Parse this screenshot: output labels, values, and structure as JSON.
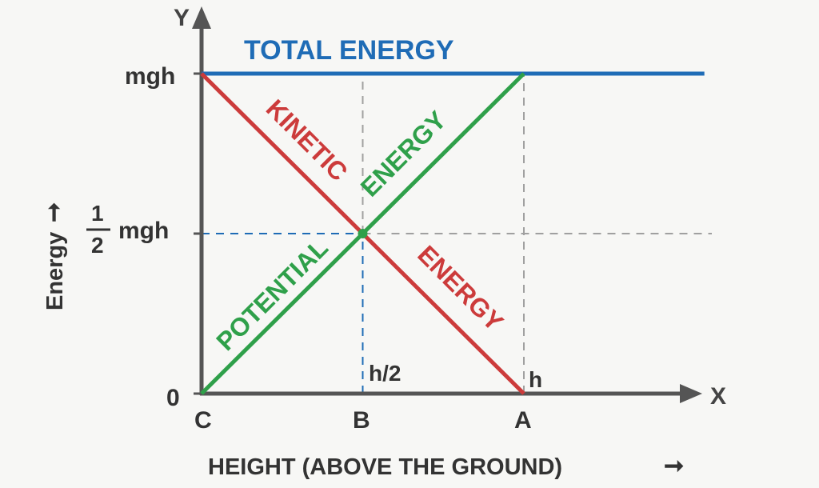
{
  "chart_data": {
    "type": "line",
    "title": "",
    "xlabel": "HEIGHT (ABOVE THE GROUND)",
    "ylabel": "Energy",
    "x_axis_letter": "X",
    "y_axis_letter": "Y",
    "xlim": [
      0,
      1
    ],
    "ylim": [
      0,
      1
    ],
    "x_ticks": [
      {
        "value": 0,
        "point": "C",
        "label": ""
      },
      {
        "value": 0.5,
        "point": "B",
        "label": "h/2"
      },
      {
        "value": 1,
        "point": "A",
        "label": "h"
      }
    ],
    "y_ticks": [
      {
        "value": 0,
        "label": "0"
      },
      {
        "value": 0.5,
        "label_num": "1",
        "label_den": "2",
        "label": "mgh"
      },
      {
        "value": 1,
        "label": "mgh"
      }
    ],
    "series": [
      {
        "name": "TOTAL ENERGY",
        "color": "#1f6cb6",
        "x": [
          0,
          1.56
        ],
        "y": [
          1,
          1
        ]
      },
      {
        "name_words": [
          "KINETIC",
          "ENERGY"
        ],
        "color": "#cc3b3b",
        "x": [
          0,
          0.5,
          1
        ],
        "y": [
          1,
          0.5,
          0
        ]
      },
      {
        "name_words": [
          "POTENTIAL",
          "ENERGY"
        ],
        "color": "#2fa04a",
        "x": [
          0,
          0.5,
          1
        ],
        "y": [
          0,
          0.5,
          1
        ]
      }
    ],
    "grid": false,
    "guide_color": "#a0a0a0",
    "guide_highlight_color": "#1f6cb6",
    "axis_color": "#555555"
  }
}
